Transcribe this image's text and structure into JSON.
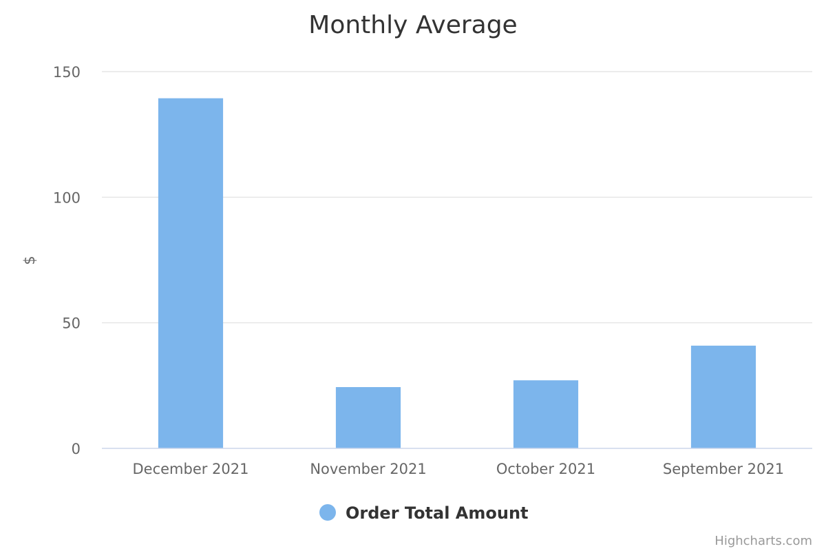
{
  "chart_data": {
    "type": "bar",
    "title": "Monthly Average",
    "ylabel": "$",
    "xlabel": "",
    "categories": [
      "December 2021",
      "November 2021",
      "October 2021",
      "September 2021"
    ],
    "series": [
      {
        "name": "Order Total Amount",
        "values": [
          139.4,
          24.4,
          27.1,
          40.9
        ],
        "color": "#7cb5ec"
      }
    ],
    "ylim": [
      0,
      150
    ],
    "yticks": [
      0,
      50,
      100,
      150
    ],
    "grid": true,
    "legend_position": "bottom-center",
    "credits": "Highcharts.com"
  }
}
